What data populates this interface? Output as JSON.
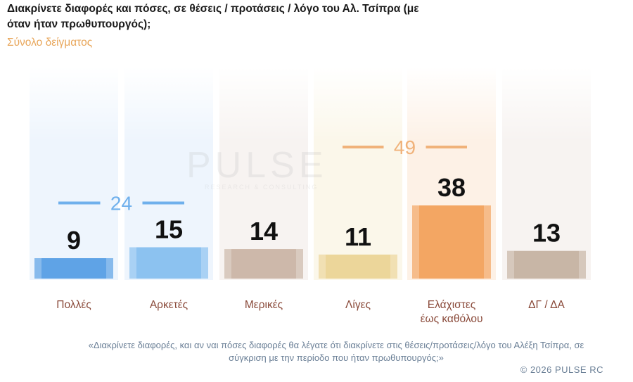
{
  "title": "Διακρίνετε διαφορές και πόσες, σε θέσεις / προτάσεις / λόγο του Αλ. Τσίπρα (με όταν ήταν πρωθυπουργός);",
  "subtitle": "Σύνολο δείγματος",
  "watermark": {
    "main": "PULSE",
    "sub": "RESEARCH & CONSULTING"
  },
  "chart_data": {
    "type": "bar",
    "title": "Διακρίνετε διαφορές και πόσες, σε θέσεις / προτάσεις / λόγο του Αλ. Τσίπρα (με όταν ήταν πρωθυπουργός);",
    "subtitle": "Σύνολο δείγματος",
    "categories": [
      "Πολλές",
      "Αρκετές",
      "Μερικές",
      "Λίγες",
      "Ελάχιστες έως καθόλου",
      "ΔΓ / ΔΑ"
    ],
    "category_lines": [
      [
        "Πολλές"
      ],
      [
        "Αρκετές"
      ],
      [
        "Μερικές"
      ],
      [
        "Λίγες"
      ],
      [
        "Ελάχιστες",
        "έως καθόλου"
      ],
      [
        "ΔΓ / ΔΑ"
      ]
    ],
    "values": [
      9,
      15,
      14,
      11,
      38,
      13
    ],
    "value_labels": [
      "9",
      "15",
      "14",
      "11",
      "38",
      "13"
    ],
    "colors": [
      "#5fa3e6",
      "#8cc2f0",
      "#cdb8aa",
      "#ecd69a",
      "#f3a663",
      "#c8b6a6"
    ],
    "groups": [
      {
        "label": "24",
        "categories": [
          0,
          1
        ],
        "color": "#6fb0ec"
      },
      {
        "label": "49",
        "categories": [
          3,
          4
        ],
        "color": "#f0b27a"
      }
    ],
    "ylim": [
      0,
      38
    ]
  },
  "footer": {
    "note": "«Διακρίνετε διαφορές, και αν ναι πόσες διαφορές θα λέγατε ότι διακρίνετε στις θέσεις/προτάσεις/λόγο του Αλέξη Τσίπρα, σε σύγκριση με την περίοδο που ήταν πρωθυπουργός;»",
    "copyright": "© 2026 PULSE RC"
  }
}
